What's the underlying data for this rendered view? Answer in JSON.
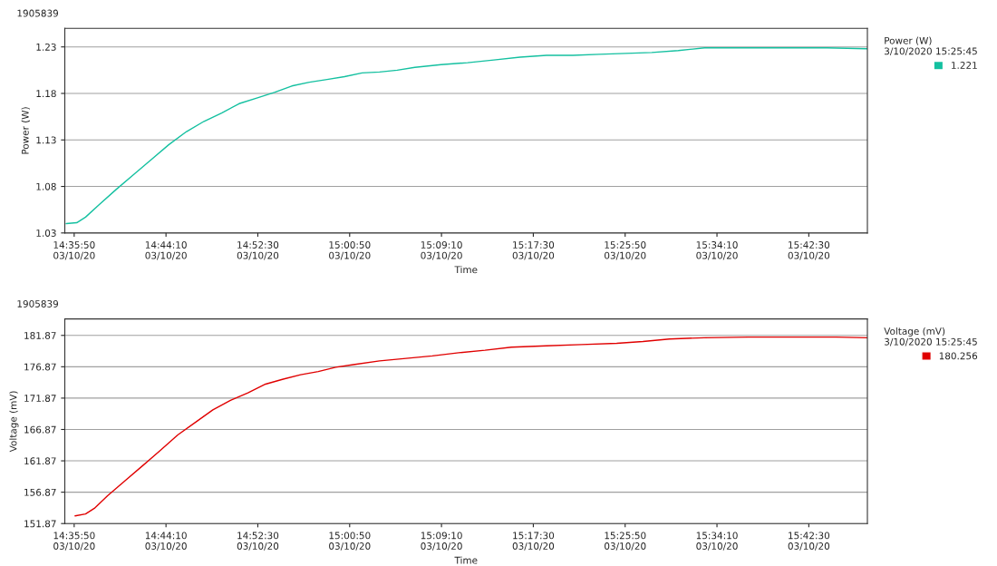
{
  "chart_data": [
    {
      "type": "line",
      "title": "1905839",
      "xlabel": "Time",
      "ylabel": "Power (W)",
      "legend_title": "Power (W)\n3/10/2020 15:25:45",
      "legend": "right",
      "grid": "y",
      "xlim": [
        "2020-03-10T14:34:59",
        "2020-03-10T15:47:49"
      ],
      "ylim": [
        1.03,
        1.25
      ],
      "xticks": [
        {
          "value": "2020-03-10T14:35:50",
          "label": "14:35:50\n03/10/20"
        },
        {
          "value": "2020-03-10T14:44:10",
          "label": "14:44:10\n03/10/20"
        },
        {
          "value": "2020-03-10T14:52:30",
          "label": "14:52:30\n03/10/20"
        },
        {
          "value": "2020-03-10T15:00:50",
          "label": "15:00:50\n03/10/20"
        },
        {
          "value": "2020-03-10T15:09:10",
          "label": "15:09:10\n03/10/20"
        },
        {
          "value": "2020-03-10T15:17:30",
          "label": "15:17:30\n03/10/20"
        },
        {
          "value": "2020-03-10T15:25:50",
          "label": "15:25:50\n03/10/20"
        },
        {
          "value": "2020-03-10T15:34:10",
          "label": "15:34:10\n03/10/20"
        },
        {
          "value": "2020-03-10T15:42:30",
          "label": "15:42:30\n03/10/20"
        }
      ],
      "yticks": [
        1.03,
        1.08,
        1.13,
        1.18,
        1.23
      ],
      "series": [
        {
          "name": "1.221",
          "color": "#14c0a0",
          "x": [
            "2020-03-10T14:35:07",
            "2020-03-10T14:36:04",
            "2020-03-10T14:36:52",
            "2020-03-10T14:38:04",
            "2020-03-10T14:39:40",
            "2020-03-10T14:41:15",
            "2020-03-10T14:42:51",
            "2020-03-10T14:44:26",
            "2020-03-10T14:46:02",
            "2020-03-10T14:47:37",
            "2020-03-10T14:49:13",
            "2020-03-10T14:50:48",
            "2020-03-10T14:52:24",
            "2020-03-10T14:54:00",
            "2020-03-10T14:55:35",
            "2020-03-10T14:57:11",
            "2020-03-10T14:58:47",
            "2020-03-10T15:00:22",
            "2020-03-10T15:01:58",
            "2020-03-10T15:03:33",
            "2020-03-10T15:05:09",
            "2020-03-10T15:06:45",
            "2020-03-10T15:09:08",
            "2020-03-10T15:11:32",
            "2020-03-10T15:13:55",
            "2020-03-10T15:16:18",
            "2020-03-10T15:18:42",
            "2020-03-10T15:21:05",
            "2020-03-10T15:23:28",
            "2020-03-10T15:25:52",
            "2020-03-10T15:28:15",
            "2020-03-10T15:30:39",
            "2020-03-10T15:33:02",
            "2020-03-10T15:35:25",
            "2020-03-10T15:37:49",
            "2020-03-10T15:41:00",
            "2020-03-10T15:44:11",
            "2020-03-10T15:47:46"
          ],
          "values": [
            1.04,
            1.041,
            1.047,
            1.06,
            1.077,
            1.093,
            1.109,
            1.125,
            1.139,
            1.15,
            1.159,
            1.169,
            1.175,
            1.181,
            1.188,
            1.192,
            1.195,
            1.198,
            1.202,
            1.203,
            1.205,
            1.208,
            1.211,
            1.213,
            1.216,
            1.219,
            1.221,
            1.221,
            1.222,
            1.223,
            1.224,
            1.226,
            1.229,
            1.229,
            1.229,
            1.229,
            1.229,
            1.228
          ]
        }
      ]
    },
    {
      "type": "line",
      "title": "1905839",
      "xlabel": "Time",
      "ylabel": "Voltage (mV)",
      "legend_title": "Voltage (mV)\n3/10/2020 15:25:45",
      "legend": "right",
      "grid": "y",
      "xlim": [
        "2020-03-10T14:34:59",
        "2020-03-10T15:47:49"
      ],
      "ylim": [
        151.87,
        184.5
      ],
      "xticks": [
        {
          "value": "2020-03-10T14:35:50",
          "label": "14:35:50\n03/10/20"
        },
        {
          "value": "2020-03-10T14:44:10",
          "label": "14:44:10\n03/10/20"
        },
        {
          "value": "2020-03-10T14:52:30",
          "label": "14:52:30\n03/10/20"
        },
        {
          "value": "2020-03-10T15:00:50",
          "label": "15:00:50\n03/10/20"
        },
        {
          "value": "2020-03-10T15:09:10",
          "label": "15:09:10\n03/10/20"
        },
        {
          "value": "2020-03-10T15:17:30",
          "label": "15:17:30\n03/10/20"
        },
        {
          "value": "2020-03-10T15:25:50",
          "label": "15:25:50\n03/10/20"
        },
        {
          "value": "2020-03-10T15:34:10",
          "label": "15:34:10\n03/10/20"
        },
        {
          "value": "2020-03-10T15:42:30",
          "label": "15:42:30\n03/10/20"
        }
      ],
      "yticks": [
        151.87,
        156.87,
        161.87,
        166.87,
        171.87,
        176.87,
        181.87
      ],
      "series": [
        {
          "name": "180.256",
          "color": "#e00000",
          "x": [
            "2020-03-10T14:35:55",
            "2020-03-10T14:36:52",
            "2020-03-10T14:37:40",
            "2020-03-10T14:38:52",
            "2020-03-10T14:40:27",
            "2020-03-10T14:42:03",
            "2020-03-10T14:43:38",
            "2020-03-10T14:45:14",
            "2020-03-10T14:46:50",
            "2020-03-10T14:48:25",
            "2020-03-10T14:50:01",
            "2020-03-10T14:51:36",
            "2020-03-10T14:53:12",
            "2020-03-10T14:54:48",
            "2020-03-10T14:56:23",
            "2020-03-10T14:57:59",
            "2020-03-10T14:59:34",
            "2020-03-10T15:01:10",
            "2020-03-10T15:03:33",
            "2020-03-10T15:05:57",
            "2020-03-10T15:08:20",
            "2020-03-10T15:10:44",
            "2020-03-10T15:13:07",
            "2020-03-10T15:15:31",
            "2020-03-10T15:18:42",
            "2020-03-10T15:21:53",
            "2020-03-10T15:25:04",
            "2020-03-10T15:27:27",
            "2020-03-10T15:29:51",
            "2020-03-10T15:33:02",
            "2020-03-10T15:37:01",
            "2020-03-10T15:41:00",
            "2020-03-10T15:44:59",
            "2020-03-10T15:47:46"
          ],
          "values": [
            153.1,
            153.4,
            154.3,
            156.3,
            158.7,
            161.1,
            163.5,
            166.0,
            168.0,
            170.0,
            171.5,
            172.7,
            174.1,
            174.9,
            175.6,
            176.1,
            176.8,
            177.2,
            177.8,
            178.2,
            178.6,
            179.1,
            179.5,
            180.0,
            180.2,
            180.4,
            180.6,
            180.9,
            181.3,
            181.5,
            181.6,
            181.6,
            181.6,
            181.5
          ]
        }
      ]
    }
  ]
}
